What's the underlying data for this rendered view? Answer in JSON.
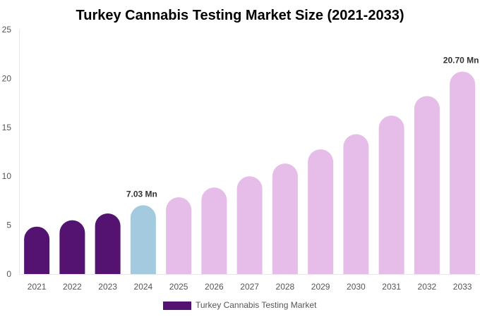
{
  "chart_data": {
    "type": "bar",
    "title": "Turkey Cannabis Testing Market Size (2021-2033)",
    "xlabel": "",
    "ylabel": "",
    "ylim": [
      0,
      25
    ],
    "yticks": [
      0,
      5,
      10,
      15,
      20,
      25
    ],
    "grid": false,
    "legend_position": "bottom",
    "categories": [
      "2021",
      "2022",
      "2023",
      "2024",
      "2025",
      "2026",
      "2027",
      "2028",
      "2029",
      "2030",
      "2031",
      "2032",
      "2033"
    ],
    "series": [
      {
        "name": "Turkey Cannabis Testing Market",
        "values": [
          4.85,
          5.5,
          6.2,
          7.03,
          7.85,
          8.85,
          10.0,
          11.3,
          12.75,
          14.3,
          16.2,
          18.2,
          20.7
        ]
      }
    ],
    "bar_colors": [
      "#541371",
      "#541371",
      "#541371",
      "#a3cadf",
      "#e6bde8",
      "#e6bde8",
      "#e6bde8",
      "#e6bde8",
      "#e6bde8",
      "#e6bde8",
      "#e6bde8",
      "#e6bde8",
      "#e6bde8"
    ],
    "legend_color": "#541371",
    "data_labels": [
      {
        "category": "2024",
        "text": "7.03 Mn"
      },
      {
        "category": "2033",
        "text": "20.70 Mn"
      }
    ]
  }
}
